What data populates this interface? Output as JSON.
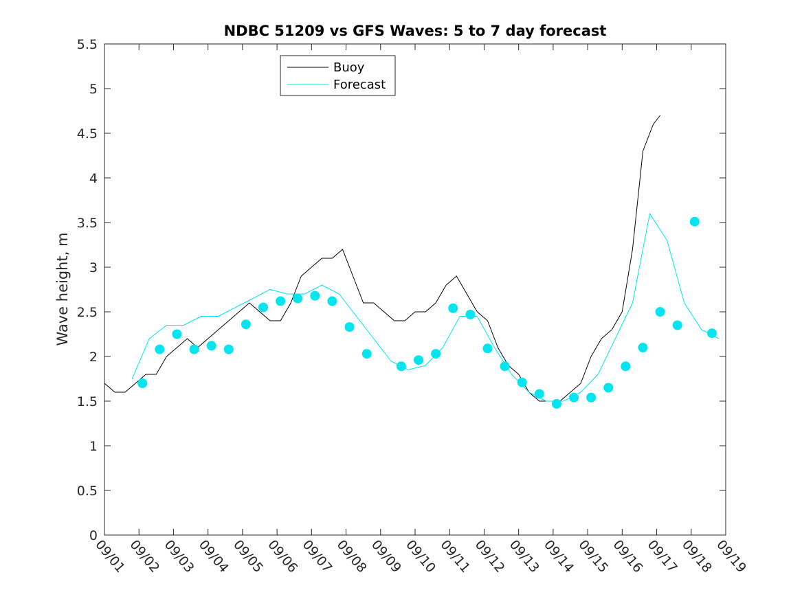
{
  "chart_data": {
    "type": "line",
    "title": "NDBC 51209 vs GFS Waves: 5 to 7 day forecast",
    "xlabel": "",
    "ylabel": "Wave height, m",
    "xlim": [
      0,
      18
    ],
    "ylim": [
      0,
      5.5
    ],
    "x_tick_labels": [
      "09/01",
      "09/02",
      "09/03",
      "09/04",
      "09/05",
      "09/06",
      "09/07",
      "09/08",
      "09/09",
      "09/10",
      "09/11",
      "09/12",
      "09/13",
      "09/14",
      "09/15",
      "09/16",
      "09/17",
      "09/18",
      "09/19"
    ],
    "y_ticks": [
      0,
      0.5,
      1,
      1.5,
      2,
      2.5,
      3,
      3.5,
      4,
      4.5,
      5,
      5.5
    ],
    "y_tick_labels": [
      "0",
      "0.5",
      "1",
      "1.5",
      "2",
      "2.5",
      "3",
      "3.5",
      "4",
      "4.5",
      "5",
      "5.5"
    ],
    "legend": {
      "location": "top-center",
      "entries": [
        "Buoy",
        "Forecast"
      ]
    },
    "colors": {
      "buoy": "#000000",
      "forecast": "#00e5ee",
      "axes": "#262626"
    },
    "series": [
      {
        "name": "Buoy",
        "color": "#000000",
        "points": [
          [
            0,
            1.7
          ],
          [
            0.3,
            1.6
          ],
          [
            0.6,
            1.6
          ],
          [
            0.9,
            1.7
          ],
          [
            1.2,
            1.8
          ],
          [
            1.5,
            1.8
          ],
          [
            1.8,
            2.0
          ],
          [
            2.1,
            2.1
          ],
          [
            2.4,
            2.2
          ],
          [
            2.7,
            2.1
          ],
          [
            3.0,
            2.2
          ],
          [
            3.3,
            2.3
          ],
          [
            3.6,
            2.4
          ],
          [
            3.9,
            2.5
          ],
          [
            4.2,
            2.6
          ],
          [
            4.5,
            2.5
          ],
          [
            4.8,
            2.4
          ],
          [
            5.1,
            2.4
          ],
          [
            5.4,
            2.6
          ],
          [
            5.7,
            2.9
          ],
          [
            6.0,
            3.0
          ],
          [
            6.3,
            3.1
          ],
          [
            6.6,
            3.1
          ],
          [
            6.9,
            3.2
          ],
          [
            7.2,
            2.9
          ],
          [
            7.5,
            2.6
          ],
          [
            7.8,
            2.6
          ],
          [
            8.1,
            2.5
          ],
          [
            8.4,
            2.4
          ],
          [
            8.7,
            2.4
          ],
          [
            9.0,
            2.5
          ],
          [
            9.3,
            2.5
          ],
          [
            9.6,
            2.6
          ],
          [
            9.9,
            2.8
          ],
          [
            10.2,
            2.9
          ],
          [
            10.5,
            2.7
          ],
          [
            10.8,
            2.5
          ],
          [
            11.1,
            2.4
          ],
          [
            11.4,
            2.1
          ],
          [
            11.7,
            1.9
          ],
          [
            12.0,
            1.8
          ],
          [
            12.3,
            1.6
          ],
          [
            12.6,
            1.5
          ],
          [
            12.9,
            1.5
          ],
          [
            13.2,
            1.5
          ],
          [
            13.5,
            1.6
          ],
          [
            13.8,
            1.7
          ],
          [
            14.1,
            2.0
          ],
          [
            14.4,
            2.2
          ],
          [
            14.7,
            2.3
          ],
          [
            15.0,
            2.5
          ],
          [
            15.3,
            3.2
          ],
          [
            15.6,
            4.3
          ],
          [
            15.9,
            4.6
          ],
          [
            16.1,
            4.7
          ]
        ]
      },
      {
        "name": "Forecast",
        "color": "#00e5ee",
        "points": [
          [
            0.8,
            1.75
          ],
          [
            1.3,
            2.2
          ],
          [
            1.8,
            2.35
          ],
          [
            2.3,
            2.35
          ],
          [
            2.8,
            2.45
          ],
          [
            3.3,
            2.45
          ],
          [
            3.8,
            2.55
          ],
          [
            4.3,
            2.65
          ],
          [
            4.8,
            2.75
          ],
          [
            5.3,
            2.7
          ],
          [
            5.8,
            2.7
          ],
          [
            6.3,
            2.8
          ],
          [
            6.8,
            2.7
          ],
          [
            7.3,
            2.45
          ],
          [
            7.8,
            2.2
          ],
          [
            8.3,
            1.95
          ],
          [
            8.8,
            1.85
          ],
          [
            9.3,
            1.9
          ],
          [
            9.8,
            2.1
          ],
          [
            10.3,
            2.45
          ],
          [
            10.8,
            2.45
          ],
          [
            11.3,
            2.1
          ],
          [
            11.8,
            1.8
          ],
          [
            12.3,
            1.6
          ],
          [
            12.8,
            1.5
          ],
          [
            13.3,
            1.5
          ],
          [
            13.8,
            1.6
          ],
          [
            14.3,
            1.8
          ],
          [
            14.8,
            2.2
          ],
          [
            15.3,
            2.6
          ],
          [
            15.8,
            3.6
          ],
          [
            16.3,
            3.3
          ],
          [
            16.8,
            2.6
          ],
          [
            17.3,
            2.3
          ],
          [
            17.8,
            2.2
          ]
        ]
      }
    ],
    "forecast_markers": [
      [
        1.1,
        1.7
      ],
      [
        1.6,
        2.08
      ],
      [
        2.1,
        2.25
      ],
      [
        2.6,
        2.08
      ],
      [
        3.1,
        2.12
      ],
      [
        3.6,
        2.08
      ],
      [
        4.1,
        2.36
      ],
      [
        4.6,
        2.55
      ],
      [
        5.1,
        2.62
      ],
      [
        5.6,
        2.65
      ],
      [
        6.1,
        2.68
      ],
      [
        6.6,
        2.62
      ],
      [
        7.1,
        2.33
      ],
      [
        7.6,
        2.03
      ],
      [
        8.6,
        1.89
      ],
      [
        9.1,
        1.96
      ],
      [
        9.6,
        2.03
      ],
      [
        10.1,
        2.54
      ],
      [
        10.6,
        2.47
      ],
      [
        11.1,
        2.09
      ],
      [
        11.6,
        1.89
      ],
      [
        12.1,
        1.71
      ],
      [
        12.6,
        1.58
      ],
      [
        13.1,
        1.47
      ],
      [
        13.6,
        1.54
      ],
      [
        14.1,
        1.54
      ],
      [
        14.6,
        1.65
      ],
      [
        15.1,
        1.89
      ],
      [
        15.6,
        2.1
      ],
      [
        16.1,
        2.5
      ],
      [
        16.6,
        2.35
      ],
      [
        17.1,
        3.51
      ],
      [
        17.6,
        2.26
      ]
    ]
  }
}
